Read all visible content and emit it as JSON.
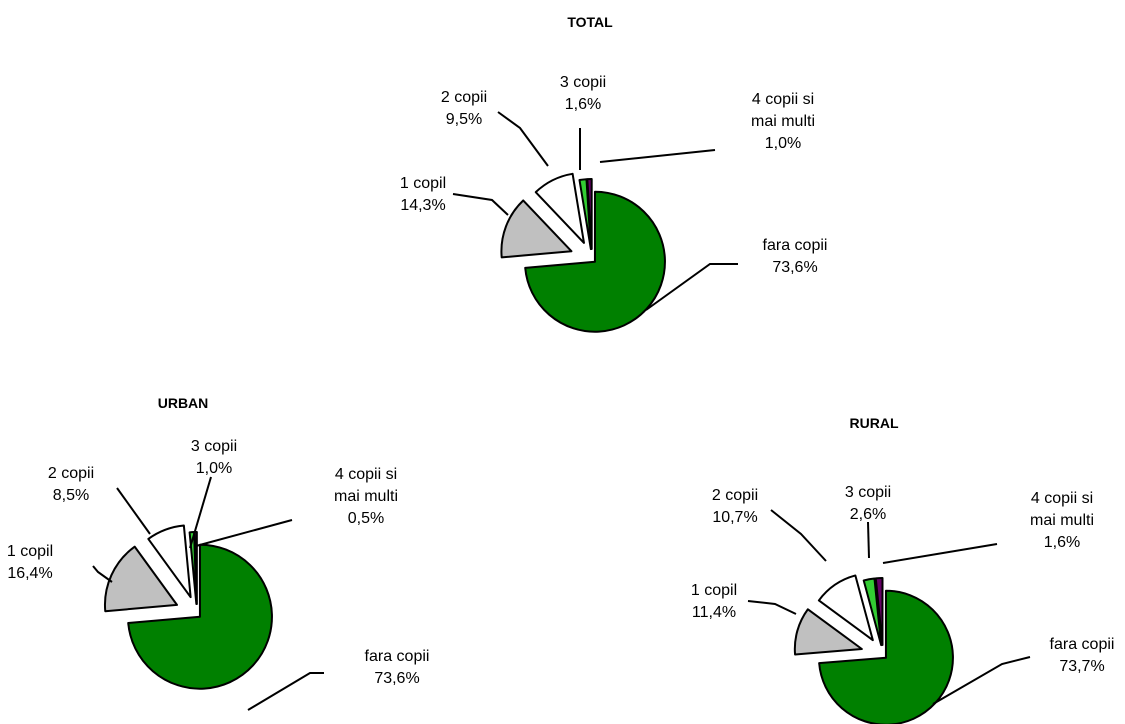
{
  "chart_data": [
    {
      "type": "pie",
      "title": "TOTAL",
      "slices": [
        {
          "label_lines": [
            "fara copii"
          ],
          "value_label": "73,6%",
          "value": 73.6,
          "color": "#008000"
        },
        {
          "label_lines": [
            "1 copil"
          ],
          "value_label": "14,3%",
          "value": 14.3,
          "color": "#c0c0c0"
        },
        {
          "label_lines": [
            "2 copii"
          ],
          "value_label": "9,5%",
          "value": 9.5,
          "color": "#ffffff"
        },
        {
          "label_lines": [
            "3 copii"
          ],
          "value_label": "1,6%",
          "value": 1.6,
          "color": "#33cc33"
        },
        {
          "label_lines": [
            "4 copii si",
            "mai multi"
          ],
          "value_label": "1,0%",
          "value": 1.0,
          "color": "#660066"
        }
      ]
    },
    {
      "type": "pie",
      "title": "URBAN",
      "slices": [
        {
          "label_lines": [
            "fara copii"
          ],
          "value_label": "73,6%",
          "value": 73.6,
          "color": "#008000"
        },
        {
          "label_lines": [
            "1 copil"
          ],
          "value_label": "16,4%",
          "value": 16.4,
          "color": "#c0c0c0"
        },
        {
          "label_lines": [
            "2 copii"
          ],
          "value_label": "8,5%",
          "value": 8.5,
          "color": "#ffffff"
        },
        {
          "label_lines": [
            "3 copii"
          ],
          "value_label": "1,0%",
          "value": 1.0,
          "color": "#33cc33"
        },
        {
          "label_lines": [
            "4 copii si",
            "mai multi"
          ],
          "value_label": "0,5%",
          "value": 0.5,
          "color": "#660066"
        }
      ]
    },
    {
      "type": "pie",
      "title": "RURAL",
      "slices": [
        {
          "label_lines": [
            "fara copii"
          ],
          "value_label": "73,7%",
          "value": 73.7,
          "color": "#008000"
        },
        {
          "label_lines": [
            "1 copil"
          ],
          "value_label": "11,4%",
          "value": 11.4,
          "color": "#c0c0c0"
        },
        {
          "label_lines": [
            "2 copii"
          ],
          "value_label": "10,7%",
          "value": 10.7,
          "color": "#ffffff"
        },
        {
          "label_lines": [
            "3 copii"
          ],
          "value_label": "2,6%",
          "value": 2.6,
          "color": "#33cc33"
        },
        {
          "label_lines": [
            "4 copii si",
            "mai multi"
          ],
          "value_label": "1,6%",
          "value": 1.6,
          "color": "#660066"
        }
      ]
    }
  ]
}
